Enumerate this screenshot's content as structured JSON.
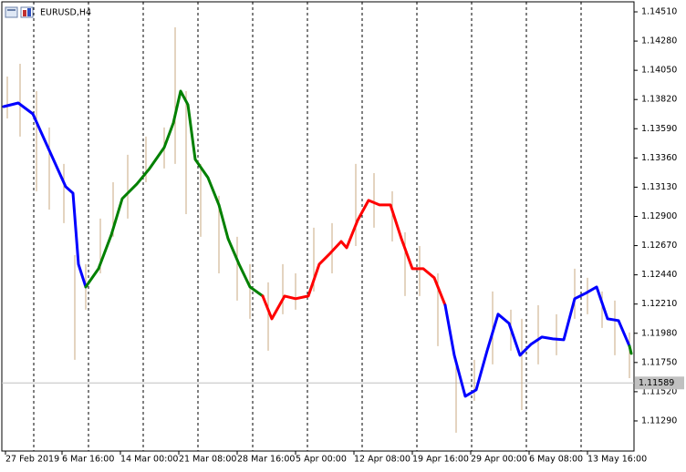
{
  "chart_data": {
    "type": "line",
    "title": "EURUSD,H4",
    "xlim": [
      0,
      346.5
    ],
    "ylim": [
      1.11053,
      1.14589
    ],
    "xticks": [
      {
        "value": 2,
        "label": "27 Feb 2019"
      },
      {
        "value": 33,
        "label": "6 Mar 16:00"
      },
      {
        "value": 65,
        "label": "14 Mar 00:00"
      },
      {
        "value": 97,
        "label": "21 Mar 08:00"
      },
      {
        "value": 129,
        "label": "28 Mar 16:00"
      },
      {
        "value": 161,
        "label": "5 Apr 00:00"
      },
      {
        "value": 193,
        "label": "12 Apr 08:00"
      },
      {
        "value": 225,
        "label": "19 Apr 16:00"
      },
      {
        "value": 257,
        "label": "29 Apr 00:00"
      },
      {
        "value": 289,
        "label": "6 May 08:00"
      },
      {
        "value": 321,
        "label": "13 May 16:00"
      }
    ],
    "yticks": [
      {
        "value": 1.1451,
        "label": "1.14510"
      },
      {
        "value": 1.1428,
        "label": "1.14280"
      },
      {
        "value": 1.1405,
        "label": "1.14050"
      },
      {
        "value": 1.1382,
        "label": "1.13820"
      },
      {
        "value": 1.1359,
        "label": "1.13590"
      },
      {
        "value": 1.1336,
        "label": "1.13360"
      },
      {
        "value": 1.1313,
        "label": "1.13130"
      },
      {
        "value": 1.129,
        "label": "1.12900"
      },
      {
        "value": 1.1267,
        "label": "1.12670"
      },
      {
        "value": 1.1244,
        "label": "1.12440"
      },
      {
        "value": 1.1221,
        "label": "1.12210"
      },
      {
        "value": 1.1198,
        "label": "1.11980"
      },
      {
        "value": 1.1175,
        "label": "1.11750"
      },
      {
        "value": 1.1152,
        "label": "1.11520"
      },
      {
        "value": 1.1129,
        "label": "1.11290"
      }
    ],
    "current_price": 1.11589,
    "bars": {
      "color": "#c9aa82",
      "x": [
        3,
        10,
        19,
        26,
        34,
        40,
        46,
        54,
        61,
        69,
        79,
        89,
        95,
        101,
        109,
        119,
        129,
        136,
        146,
        154,
        161,
        171,
        181,
        194,
        204,
        214,
        221,
        229,
        239,
        249,
        259,
        269,
        279,
        285,
        294,
        304,
        314,
        321,
        329,
        336,
        344
      ],
      "high": [
        1.14001,
        1.14101,
        1.13886,
        1.136,
        1.13313,
        1.12596,
        1.12524,
        1.12883,
        1.13169,
        1.13385,
        1.13528,
        1.136,
        1.14388,
        1.13886,
        1.13313,
        1.13062,
        1.12739,
        1.12524,
        1.12381,
        1.12524,
        1.12452,
        1.12811,
        1.12847,
        1.13313,
        1.13241,
        1.13098,
        1.12775,
        1.12667,
        1.12452,
        1.11735,
        1.11771,
        1.12309,
        1.12166,
        1.12094,
        1.12201,
        1.1213,
        1.12488,
        1.12417,
        1.12309,
        1.12237,
        1.11986
      ],
      "low": [
        1.13671,
        1.13528,
        1.13098,
        1.12954,
        1.12847,
        1.11771,
        1.12166,
        1.12452,
        1.12739,
        1.12883,
        1.13169,
        1.13277,
        1.13313,
        1.12918,
        1.12739,
        1.12452,
        1.12237,
        1.12094,
        1.11843,
        1.1213,
        1.12166,
        1.12309,
        1.12452,
        1.12667,
        1.12811,
        1.12703,
        1.12273,
        1.12273,
        1.11879,
        1.11197,
        1.11448,
        1.11735,
        1.11843,
        1.11376,
        1.11735,
        1.11807,
        1.12094,
        1.1213,
        1.12022,
        1.11807,
        1.11627
      ]
    },
    "series": [
      {
        "color": "#0000ff",
        "x": [
          1,
          9,
          17,
          26,
          35,
          39,
          42,
          46
        ],
        "values": [
          1.13764,
          1.13793,
          1.13707,
          1.1342,
          1.13134,
          1.13083,
          1.12524,
          1.12345
        ]
      },
      {
        "color": "#008000",
        "x": [
          46,
          53,
          60,
          66,
          74,
          81,
          89,
          94,
          98,
          102,
          106,
          113,
          119,
          124,
          130,
          136,
          143
        ],
        "values": [
          1.12345,
          1.12488,
          1.12754,
          1.1304,
          1.13155,
          1.13277,
          1.13442,
          1.13635,
          1.13886,
          1.13779,
          1.13349,
          1.13205,
          1.1299,
          1.12725,
          1.12524,
          1.12345,
          1.12273
        ]
      },
      {
        "color": "#ff0000",
        "x": [
          143,
          148,
          155,
          161,
          168,
          174,
          180,
          186,
          189,
          195,
          201,
          207,
          213,
          219,
          225,
          231,
          237,
          243
        ],
        "values": [
          1.12273,
          1.12094,
          1.12273,
          1.12252,
          1.12273,
          1.12524,
          1.1261,
          1.12703,
          1.12653,
          1.12868,
          1.13026,
          1.1299,
          1.1299,
          1.12725,
          1.12488,
          1.12488,
          1.12417,
          1.12201
        ]
      },
      {
        "color": "#0000ff",
        "x": [
          243,
          248,
          254,
          260,
          266,
          272,
          278,
          284,
          290,
          296,
          302,
          308,
          314,
          320,
          326,
          332,
          338,
          344
        ],
        "values": [
          1.12201,
          1.11807,
          1.11484,
          1.11535,
          1.11843,
          1.1213,
          1.12058,
          1.11807,
          1.11893,
          1.1195,
          1.11936,
          1.11929,
          1.12252,
          1.12295,
          1.12345,
          1.12094,
          1.1208,
          1.11879
        ]
      },
      {
        "color": "#008000",
        "x": [
          344,
          345
        ],
        "values": [
          1.11879,
          1.11821
        ]
      }
    ]
  }
}
